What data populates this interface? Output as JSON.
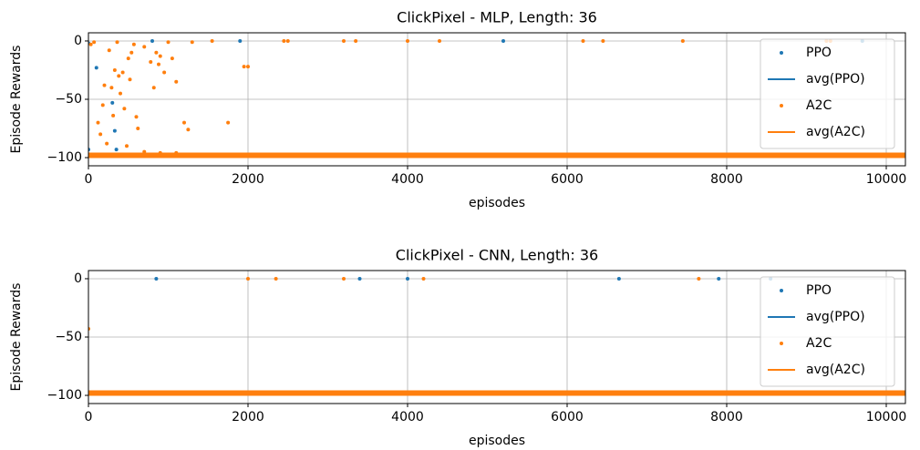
{
  "chart_data": [
    {
      "type": "scatter",
      "title": "ClickPixel - MLP, Length: 36",
      "xlabel": "episodes",
      "ylabel": "Episode Rewards",
      "xlim": [
        0,
        10240
      ],
      "ylim": [
        -107,
        7
      ],
      "xticks": [
        0,
        2000,
        4000,
        6000,
        8000,
        10000
      ],
      "yticks": [
        {
          "value": -100,
          "label": "−100"
        },
        {
          "value": -50,
          "label": "−50"
        },
        0
      ],
      "grid": true,
      "legend": "upper right",
      "series": [
        {
          "name": "PPO",
          "type": "scatter",
          "color": "#1f77b4",
          "x": [
            0,
            0,
            100,
            300,
            330,
            350,
            800,
            1900,
            5200,
            9700
          ],
          "values": [
            -2,
            -93,
            -23,
            -53,
            -77,
            -93,
            0,
            0,
            0,
            0
          ]
        },
        {
          "name": "avg(PPO)",
          "type": "line",
          "color": "#1f77b4",
          "x": [
            0,
            10240
          ],
          "values": [
            -97,
            -97
          ]
        },
        {
          "name": "A2C",
          "type": "scatter",
          "color": "#ff7f0e",
          "x": [
            30,
            70,
            120,
            150,
            180,
            200,
            230,
            260,
            290,
            310,
            330,
            360,
            380,
            400,
            430,
            450,
            480,
            500,
            520,
            540,
            570,
            600,
            620,
            700,
            780,
            820,
            850,
            880,
            900,
            950,
            1000,
            1050,
            1100,
            1200,
            1250,
            1300,
            1550,
            1750,
            1950,
            2000,
            2450,
            2500,
            3200,
            3350,
            4000,
            4400,
            6200,
            6450,
            7450,
            9250,
            9300,
            700,
            900,
            1100
          ],
          "values": [
            -3,
            -1,
            -70,
            -80,
            -55,
            -38,
            -88,
            -8,
            -40,
            -64,
            -25,
            -1,
            -30,
            -45,
            -27,
            -58,
            -90,
            -15,
            -33,
            -10,
            -3,
            -65,
            -75,
            -5,
            -18,
            -40,
            -10,
            -20,
            -13,
            -27,
            -1,
            -15,
            -35,
            -70,
            -76,
            -1,
            0,
            -70,
            -22,
            -22,
            0,
            0,
            0,
            0,
            0,
            0,
            0,
            0,
            0,
            0,
            0,
            -95,
            -96,
            -96
          ]
        },
        {
          "name": "avg(A2C)",
          "type": "line",
          "color": "#ff7f0e",
          "x": [
            0,
            10240
          ],
          "values": [
            -98,
            -98
          ]
        }
      ]
    },
    {
      "type": "scatter",
      "title": "ClickPixel - CNN, Length: 36",
      "xlabel": "episodes",
      "ylabel": "Episode Rewards",
      "xlim": [
        0,
        10240
      ],
      "ylim": [
        -107,
        7
      ],
      "xticks": [
        0,
        2000,
        4000,
        6000,
        8000,
        10000
      ],
      "yticks": [
        {
          "value": -100,
          "label": "−100"
        },
        {
          "value": -50,
          "label": "−50"
        },
        0
      ],
      "grid": true,
      "legend": "upper right",
      "series": [
        {
          "name": "PPO",
          "type": "scatter",
          "color": "#1f77b4",
          "x": [
            850,
            3400,
            4000,
            6650,
            7900,
            8550
          ],
          "values": [
            0,
            0,
            0,
            0,
            0,
            0
          ]
        },
        {
          "name": "avg(PPO)",
          "type": "line",
          "color": "#1f77b4",
          "x": [
            0,
            10240
          ],
          "values": [
            -97,
            -97
          ]
        },
        {
          "name": "A2C",
          "type": "scatter",
          "color": "#ff7f0e",
          "x": [
            0,
            2000,
            2350,
            3200,
            4200,
            7650
          ],
          "values": [
            -43,
            0,
            0,
            0,
            0,
            0
          ]
        },
        {
          "name": "avg(A2C)",
          "type": "line",
          "color": "#ff7f0e",
          "x": [
            0,
            10240
          ],
          "values": [
            -98,
            -98
          ]
        }
      ]
    }
  ]
}
